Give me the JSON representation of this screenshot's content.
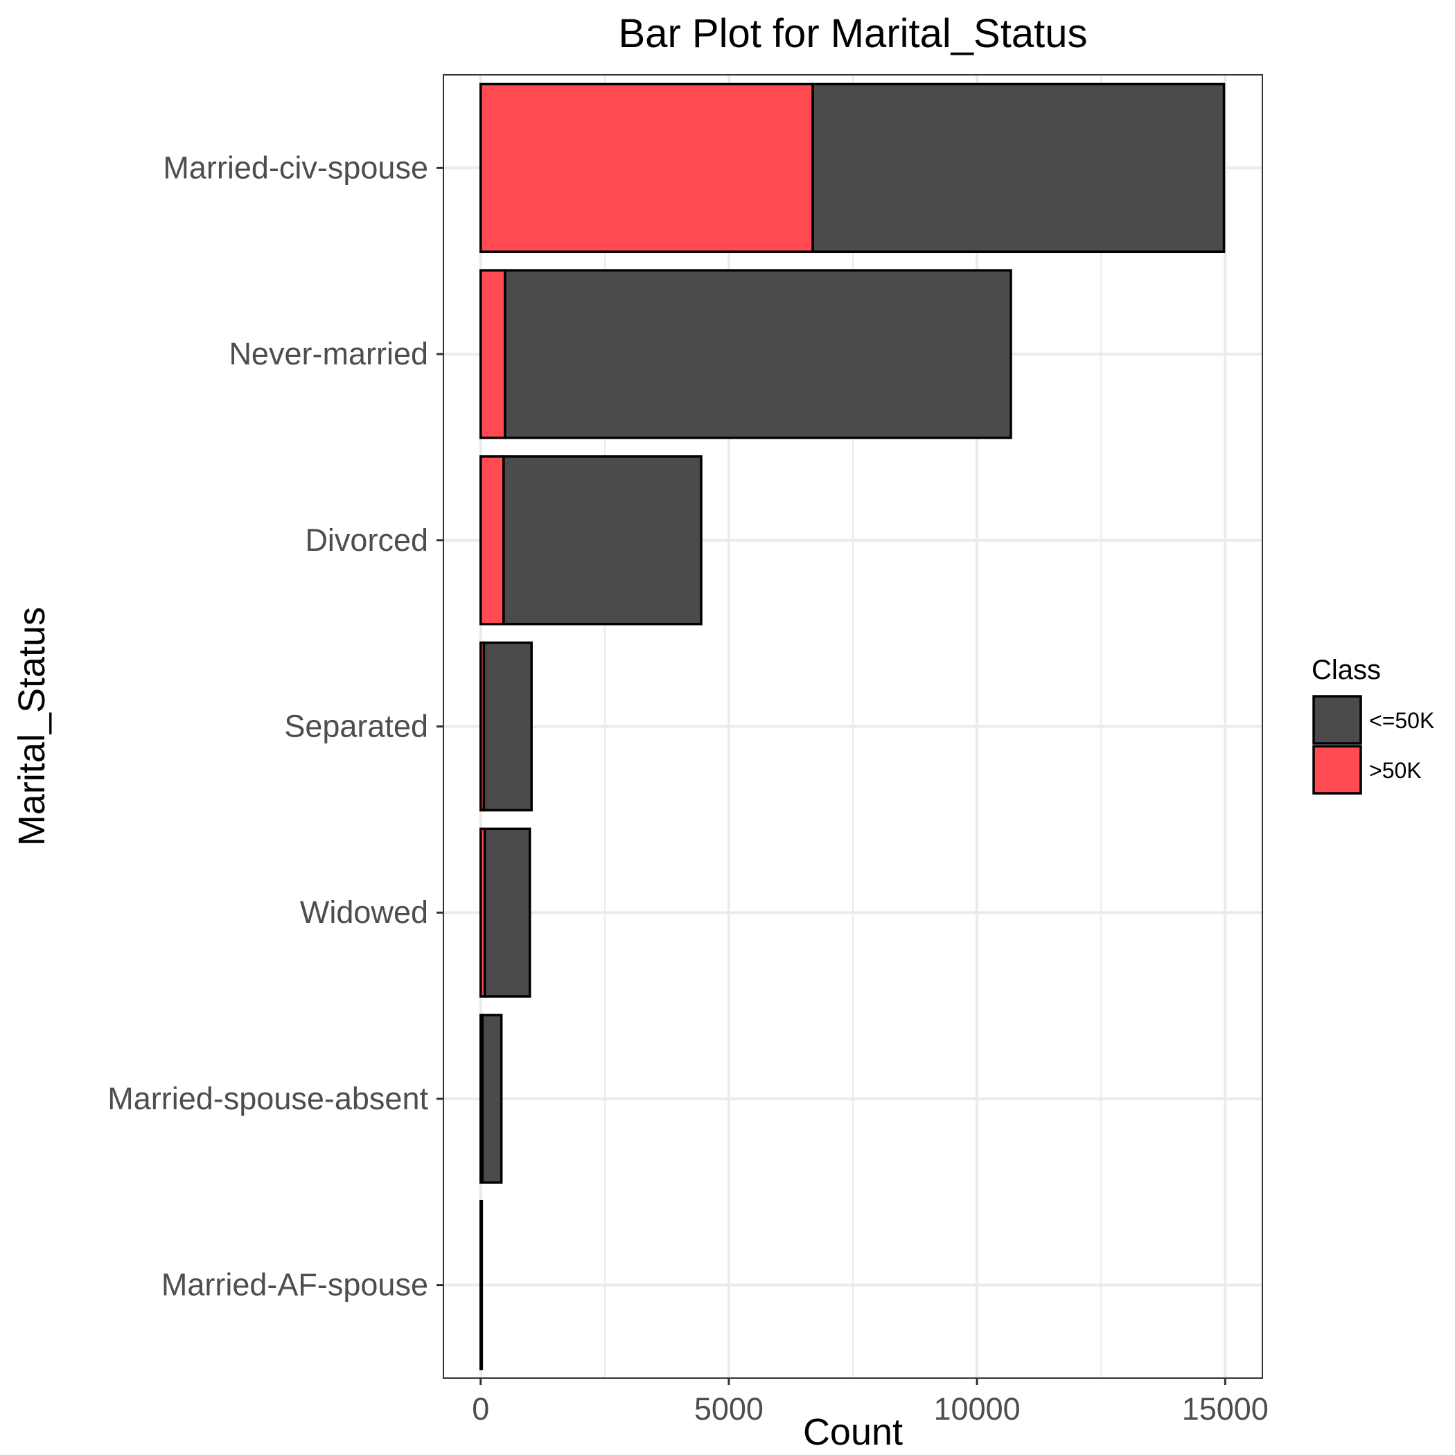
{
  "chart_data": {
    "type": "bar",
    "orientation": "horizontal",
    "stacked": true,
    "title": "Bar Plot for Marital_Status",
    "xlabel": "Count",
    "ylabel": "Marital_Status",
    "xlim": [
      -750,
      15750
    ],
    "xticks": [
      0,
      5000,
      10000,
      15000
    ],
    "grid": true,
    "legend_position": "right",
    "legend_title": "Class",
    "categories": [
      "Married-AF-spouse",
      "Married-spouse-absent",
      "Widowed",
      "Separated",
      "Divorced",
      "Never-married",
      "Married-civ-spouse"
    ],
    "series": [
      {
        "name": ">50K",
        "color": "#ff4b51",
        "values": [
          10,
          34,
          83,
          66,
          463,
          491,
          6692
        ]
      },
      {
        "name": "<=50K",
        "color": "#4b4b4b",
        "values": [
          13,
          384,
          908,
          959,
          3980,
          10192,
          8284
        ]
      }
    ]
  }
}
